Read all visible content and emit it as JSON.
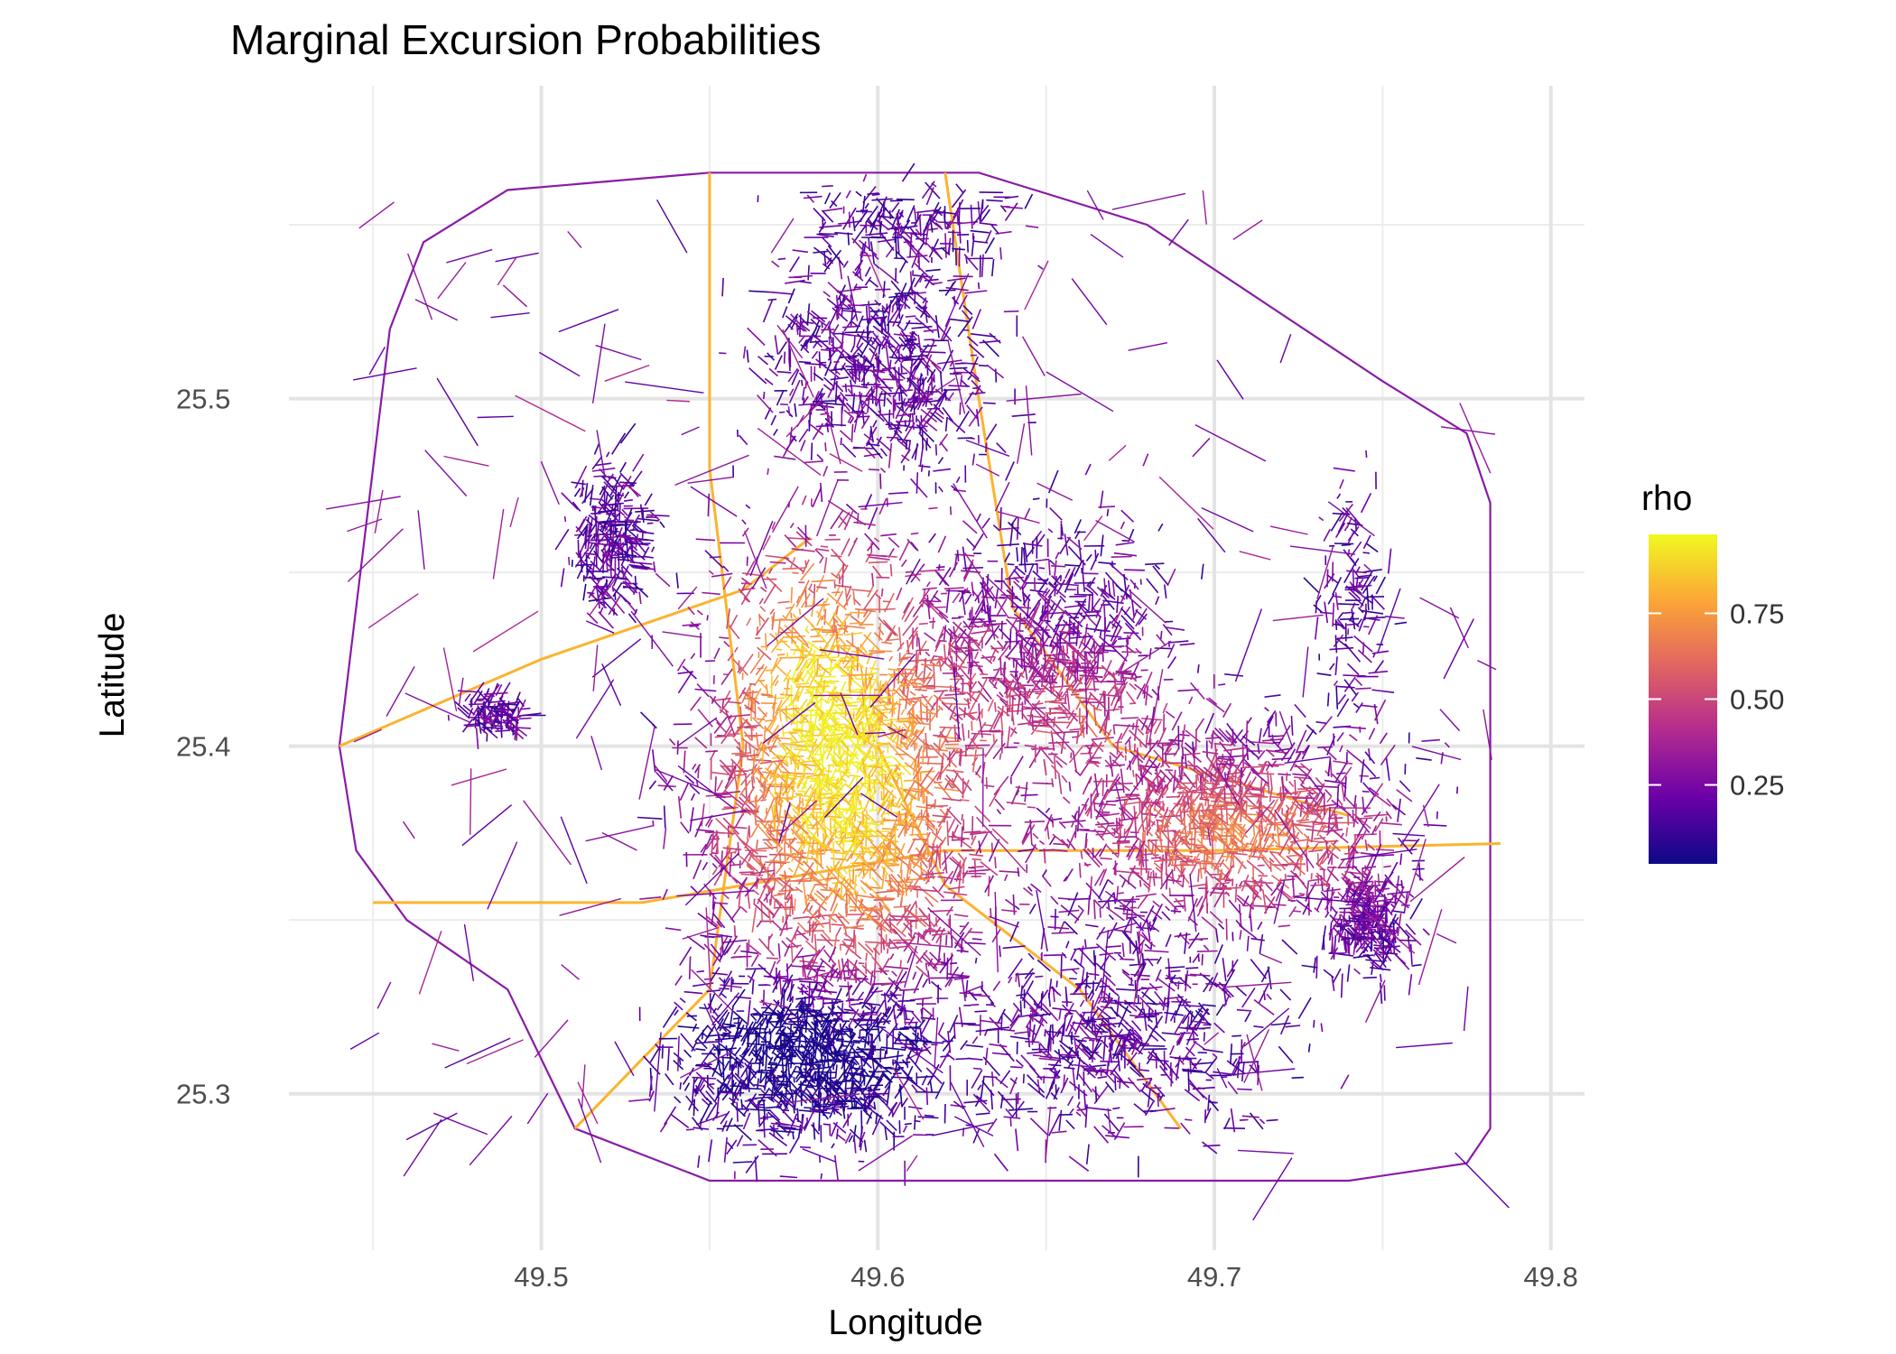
{
  "chart_data": {
    "type": "map",
    "title": "Marginal Excursion Probabilities",
    "xlabel": "Longitude",
    "ylabel": "Latitude",
    "x_ticks": [
      49.5,
      49.6,
      49.7,
      49.8
    ],
    "y_ticks": [
      25.3,
      25.4,
      25.5
    ],
    "x_minor": [
      49.45,
      49.55,
      49.65,
      49.75
    ],
    "y_minor": [
      25.35,
      25.45,
      25.55
    ],
    "xlim": [
      49.425,
      49.81
    ],
    "ylim": [
      25.255,
      25.59
    ],
    "grid": true,
    "legend": {
      "title": "rho",
      "position": "right",
      "ticks": [
        0.25,
        0.5,
        0.75
      ],
      "tick_labels": [
        "0.25",
        "0.50",
        "0.75"
      ],
      "range": [
        0.02,
        0.98
      ],
      "colors": [
        "#0d0887",
        "#6a00a8",
        "#b12a90",
        "#e16462",
        "#fca636",
        "#f0f921"
      ]
    },
    "colormap": "plasma",
    "description_regions": [
      {
        "region": "central corridor (lon 49.56-49.63, lat 25.36-25.46)",
        "rho": "high, ~0.9"
      },
      {
        "region": "east-central (lon 49.68-49.75, lat 25.36-25.39)",
        "rho": "medium-high, ~0.7"
      },
      {
        "region": "southwest (lon 49.54-49.62, lat 25.29-25.33)",
        "rho": "low, ~0.2"
      },
      {
        "region": "outer ring road and western districts",
        "rho": "low to medium"
      }
    ]
  }
}
